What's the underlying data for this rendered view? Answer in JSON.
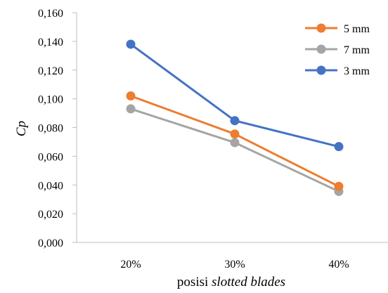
{
  "chart_data": {
    "type": "line",
    "title": "",
    "categories": [
      "20%",
      "30%",
      "40%"
    ],
    "xlabel_prefix": "posisi ",
    "xlabel_italic": "slotted blades",
    "ylabel": "Cp",
    "ylim": [
      0,
      0.16
    ],
    "yticks": [
      0,
      0.02,
      0.04,
      0.06,
      0.08,
      0.1,
      0.12,
      0.14,
      0.16
    ],
    "ytick_labels": [
      "0,000",
      "0,020",
      "0,040",
      "0,060",
      "0,080",
      "0,100",
      "0,120",
      "0,140",
      "0,160"
    ],
    "grid": false,
    "legend_position": "top-right",
    "series": [
      {
        "name": "5 mm",
        "color": "#ED7D31",
        "values": [
          0.102,
          0.0755,
          0.039
        ]
      },
      {
        "name": "7 mm",
        "color": "#A5A5A5",
        "values": [
          0.093,
          0.0695,
          0.0355
        ]
      },
      {
        "name": "3 mm",
        "color": "#4472C4",
        "values": [
          0.138,
          0.0848,
          0.0667
        ]
      }
    ]
  }
}
